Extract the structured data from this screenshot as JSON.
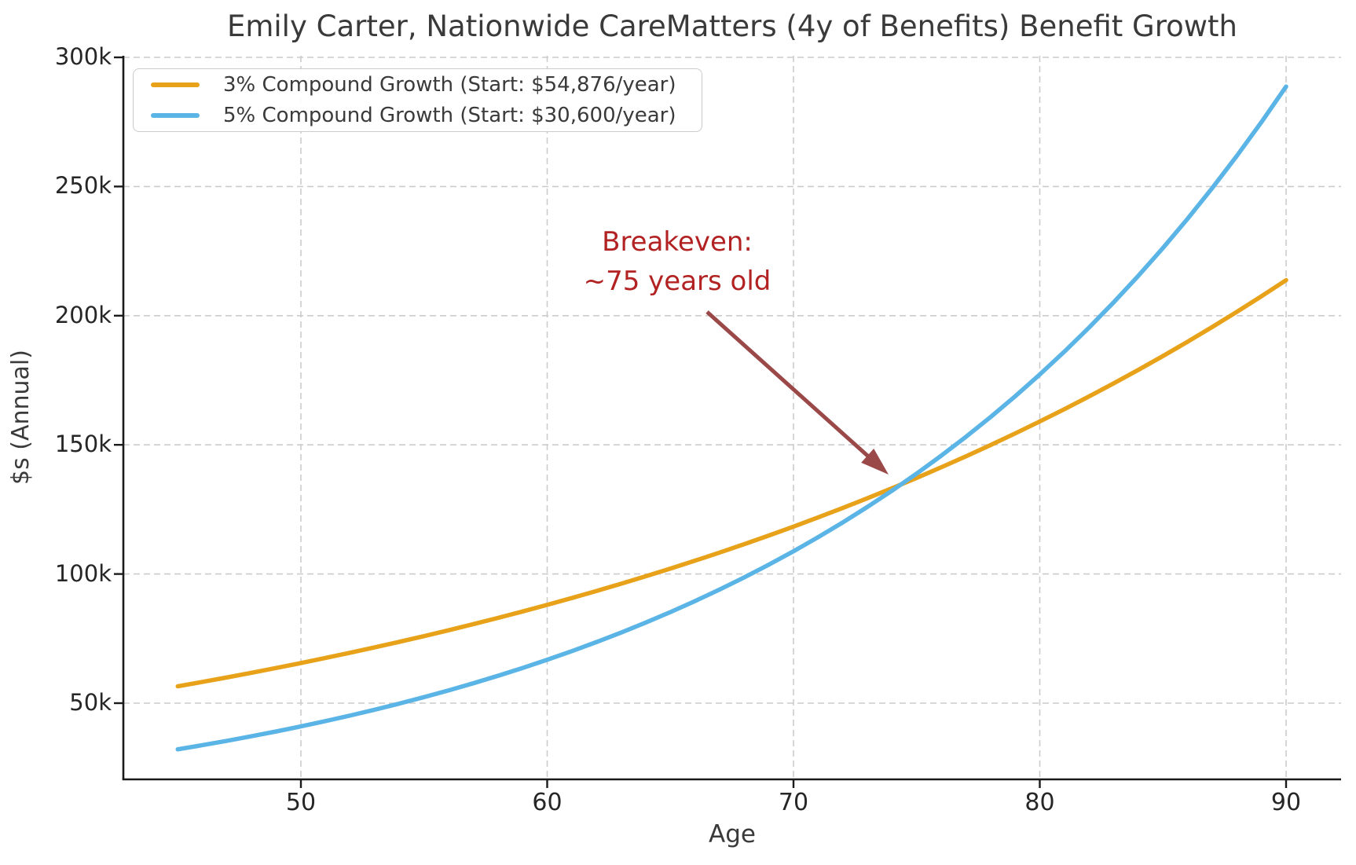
{
  "title": "Emily Carter, Nationwide CareMatters (4y of Benefits) Benefit Growth",
  "axes": {
    "x_label": "Age",
    "y_label": "$s (Annual)",
    "x_ticks": [
      {
        "value": 50,
        "label": "50"
      },
      {
        "value": 60,
        "label": "60"
      },
      {
        "value": 70,
        "label": "70"
      },
      {
        "value": 80,
        "label": "80"
      },
      {
        "value": 90,
        "label": "90"
      }
    ],
    "y_ticks": [
      {
        "value": 50000,
        "label": "50k"
      },
      {
        "value": 100000,
        "label": "100k"
      },
      {
        "value": 150000,
        "label": "150k"
      },
      {
        "value": 200000,
        "label": "200k"
      },
      {
        "value": 250000,
        "label": "250k"
      },
      {
        "value": 300000,
        "label": "300k"
      }
    ]
  },
  "legend": {
    "items": [
      {
        "label": "3% Compound Growth (Start: $54,876/year)",
        "color": "#E8A21A"
      },
      {
        "label": "5% Compound Growth (Start: $30,600/year)",
        "color": "#5BB4E6"
      }
    ]
  },
  "annotation": {
    "line1": "Breakeven:",
    "line2": "~75 years old",
    "text_color": "#B22222",
    "arrow_color": "#9A4848"
  },
  "chart_data": {
    "type": "line",
    "title": "Emily Carter, Nationwide CareMatters (4y of Benefits) Benefit Growth",
    "xlabel": "Age",
    "ylabel": "$s (Annual)",
    "xlim": [
      43,
      92
    ],
    "ylim": [
      20500,
      300600
    ],
    "grid": true,
    "grid_style": "dashed",
    "legend_position": "upper left",
    "x": [
      45,
      46,
      47,
      48,
      49,
      50,
      51,
      52,
      53,
      54,
      55,
      56,
      57,
      58,
      59,
      60,
      61,
      62,
      63,
      64,
      65,
      66,
      67,
      68,
      69,
      70,
      71,
      72,
      73,
      74,
      75,
      76,
      77,
      78,
      79,
      80,
      81,
      82,
      83,
      84,
      85,
      86,
      87,
      88,
      89,
      90
    ],
    "series": [
      {
        "name": "3% Compound Growth (Start: $54,876/year)",
        "color": "#E8A21A",
        "start_value": 54876,
        "growth_rate": 0.03,
        "values": [
          56522,
          58218,
          59964,
          61763,
          63616,
          65525,
          67491,
          69515,
          71601,
          73749,
          75961,
          78240,
          80587,
          83005,
          85495,
          88060,
          90702,
          93423,
          96225,
          99112,
          102086,
          105148,
          108303,
          111552,
          114898,
          118345,
          121895,
          125552,
          129319,
          133198,
          137194,
          141310,
          145550,
          149915,
          154411,
          159044,
          163815,
          168730,
          173791,
          179005,
          184375,
          189907,
          195604,
          201472,
          207516,
          213742
        ]
      },
      {
        "name": "5% Compound Growth (Start: $30,600/year)",
        "color": "#5BB4E6",
        "start_value": 30600,
        "growth_rate": 0.05,
        "values": [
          32130,
          33737,
          35423,
          37194,
          39054,
          41007,
          43057,
          45210,
          47471,
          49844,
          52336,
          54953,
          57701,
          60586,
          63615,
          66796,
          70136,
          73643,
          77325,
          81191,
          85250,
          89513,
          93989,
          98688,
          103622,
          108804,
          114244,
          119956,
          125954,
          132251,
          138864,
          145807,
          153098,
          160752,
          168790,
          177230,
          186091,
          195396,
          205165,
          215424,
          226195,
          237505,
          249380,
          261849,
          274941,
          288688
        ]
      }
    ],
    "annotation": {
      "text": "Breakeven: ~75 years old",
      "points_to": {
        "age": 74.4,
        "value": 135000
      }
    }
  }
}
